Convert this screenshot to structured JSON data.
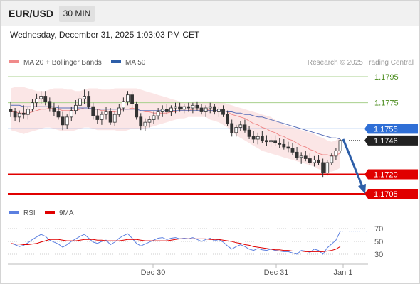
{
  "header": {
    "symbol": "EUR/USD",
    "timeframe": "30 MIN",
    "datetime": "Wednesday, December 31, 2025 1:03:03 PM CET"
  },
  "legend": {
    "ma20_label": "MA 20 + Bollinger Bands",
    "ma50_label": "MA 50",
    "ma20_color": "#f08a8a",
    "ma50_color": "#2d5ea8",
    "credit": "Research © 2025 Trading Central"
  },
  "rsi_legend": {
    "rsi_label": "RSI",
    "ma_label": "9MA",
    "rsi_color": "#5b7fe0",
    "ma_color": "#e00000"
  },
  "chart_data": [
    {
      "type": "candlestick",
      "title": "",
      "x_tick_labels": [
        "Dec 30",
        "Dec 31",
        "Jan 1"
      ],
      "ylim": [
        1.17,
        1.18
      ],
      "candles_ohlc": [
        [
          1.177,
          1.1776,
          1.1764,
          1.1768
        ],
        [
          1.1768,
          1.1771,
          1.1761,
          1.1764
        ],
        [
          1.1764,
          1.1769,
          1.176,
          1.1767
        ],
        [
          1.1767,
          1.1773,
          1.1763,
          1.1766
        ],
        [
          1.1766,
          1.1772,
          1.1762,
          1.177
        ],
        [
          1.177,
          1.1778,
          1.1768,
          1.1775
        ],
        [
          1.1775,
          1.1782,
          1.1772,
          1.1778
        ],
        [
          1.1778,
          1.1784,
          1.1774,
          1.178
        ],
        [
          1.178,
          1.1784,
          1.1773,
          1.1776
        ],
        [
          1.1776,
          1.1779,
          1.1768,
          1.1771
        ],
        [
          1.1771,
          1.1775,
          1.1765,
          1.1768
        ],
        [
          1.1768,
          1.1773,
          1.1762,
          1.1764
        ],
        [
          1.1764,
          1.1768,
          1.1754,
          1.1758
        ],
        [
          1.1758,
          1.1766,
          1.1755,
          1.1764
        ],
        [
          1.1764,
          1.1772,
          1.1761,
          1.1769
        ],
        [
          1.1769,
          1.1777,
          1.1766,
          1.1773
        ],
        [
          1.1773,
          1.1781,
          1.177,
          1.1778
        ],
        [
          1.1778,
          1.1785,
          1.1774,
          1.178
        ],
        [
          1.178,
          1.1784,
          1.177,
          1.1772
        ],
        [
          1.1772,
          1.1775,
          1.1762,
          1.1765
        ],
        [
          1.1765,
          1.177,
          1.1759,
          1.1762
        ],
        [
          1.1762,
          1.1768,
          1.1758,
          1.1766
        ],
        [
          1.1766,
          1.1772,
          1.1762,
          1.1768
        ],
        [
          1.1768,
          1.1771,
          1.1758,
          1.176
        ],
        [
          1.176,
          1.1768,
          1.1757,
          1.1766
        ],
        [
          1.1766,
          1.1774,
          1.1764,
          1.1771
        ],
        [
          1.1771,
          1.1779,
          1.1768,
          1.1776
        ],
        [
          1.1776,
          1.1784,
          1.1773,
          1.1781
        ],
        [
          1.1781,
          1.1784,
          1.1771,
          1.1774
        ],
        [
          1.1774,
          1.1776,
          1.1762,
          1.1764
        ],
        [
          1.1764,
          1.1767,
          1.1754,
          1.1757
        ],
        [
          1.1757,
          1.1763,
          1.1753,
          1.176
        ],
        [
          1.176,
          1.1765,
          1.1756,
          1.1762
        ],
        [
          1.1762,
          1.1768,
          1.1759,
          1.1765
        ],
        [
          1.1765,
          1.1771,
          1.1762,
          1.1768
        ],
        [
          1.1768,
          1.1773,
          1.1764,
          1.177
        ],
        [
          1.177,
          1.1774,
          1.1766,
          1.1768
        ],
        [
          1.1768,
          1.1773,
          1.1765,
          1.1771
        ],
        [
          1.1771,
          1.1775,
          1.1767,
          1.1772
        ],
        [
          1.1772,
          1.1775,
          1.1768,
          1.177
        ],
        [
          1.177,
          1.1774,
          1.1767,
          1.1772
        ],
        [
          1.1772,
          1.1775,
          1.1768,
          1.1771
        ],
        [
          1.1771,
          1.1775,
          1.1767,
          1.1773
        ],
        [
          1.1773,
          1.1776,
          1.1769,
          1.1771
        ],
        [
          1.1771,
          1.1774,
          1.1766,
          1.1768
        ],
        [
          1.1768,
          1.1773,
          1.1764,
          1.1771
        ],
        [
          1.1771,
          1.1775,
          1.1767,
          1.1772
        ],
        [
          1.1772,
          1.1774,
          1.1766,
          1.1768
        ],
        [
          1.1768,
          1.1772,
          1.1764,
          1.177
        ],
        [
          1.177,
          1.1773,
          1.1764,
          1.1766
        ],
        [
          1.1766,
          1.1769,
          1.1757,
          1.1759
        ],
        [
          1.1759,
          1.1762,
          1.1749,
          1.1752
        ],
        [
          1.1752,
          1.1758,
          1.1749,
          1.1756
        ],
        [
          1.1756,
          1.1761,
          1.1753,
          1.1758
        ],
        [
          1.1758,
          1.1762,
          1.1752,
          1.1754
        ],
        [
          1.1754,
          1.1757,
          1.1747,
          1.1749
        ],
        [
          1.1749,
          1.1753,
          1.1744,
          1.1747
        ],
        [
          1.1747,
          1.1752,
          1.1743,
          1.1749
        ],
        [
          1.1749,
          1.1753,
          1.1744,
          1.1746
        ],
        [
          1.1746,
          1.175,
          1.1742,
          1.1745
        ],
        [
          1.1745,
          1.1749,
          1.1741,
          1.1746
        ],
        [
          1.1746,
          1.175,
          1.1742,
          1.1744
        ],
        [
          1.1744,
          1.1748,
          1.174,
          1.1743
        ],
        [
          1.1743,
          1.1747,
          1.1739,
          1.1741
        ],
        [
          1.1741,
          1.1745,
          1.1737,
          1.174
        ],
        [
          1.174,
          1.1744,
          1.1735,
          1.1737
        ],
        [
          1.1737,
          1.1741,
          1.1731,
          1.1733
        ],
        [
          1.1733,
          1.1737,
          1.1728,
          1.1734
        ],
        [
          1.1734,
          1.1738,
          1.173,
          1.1732
        ],
        [
          1.1732,
          1.1736,
          1.1727,
          1.1729
        ],
        [
          1.1729,
          1.1734,
          1.1726,
          1.1731
        ],
        [
          1.1731,
          1.1735,
          1.1727,
          1.1729
        ],
        [
          1.1729,
          1.1732,
          1.1718,
          1.1721
        ],
        [
          1.1721,
          1.1731,
          1.1719,
          1.1729
        ],
        [
          1.1729,
          1.1736,
          1.1727,
          1.1734
        ],
        [
          1.1734,
          1.174,
          1.1731,
          1.1738
        ],
        [
          1.1738,
          1.1747,
          1.1736,
          1.1746
        ]
      ],
      "series": [
        {
          "name": "MA 20",
          "values": [
            1.1768,
            1.1768,
            1.1767,
            1.1767,
            1.1767,
            1.1768,
            1.1769,
            1.177,
            1.177,
            1.1771,
            1.177,
            1.177,
            1.1769,
            1.1769,
            1.1769,
            1.1769,
            1.177,
            1.1771,
            1.1771,
            1.177,
            1.177,
            1.1769,
            1.1769,
            1.1768,
            1.1768,
            1.1769,
            1.177,
            1.177,
            1.1771,
            1.177,
            1.1769,
            1.1768,
            1.1768,
            1.1767,
            1.1767,
            1.1767,
            1.1767,
            1.1768,
            1.1768,
            1.1769,
            1.1769,
            1.1769,
            1.177,
            1.177,
            1.177,
            1.177,
            1.1769,
            1.1769,
            1.1769,
            1.1769,
            1.1768,
            1.1766,
            1.1765,
            1.1764,
            1.1763,
            1.1761,
            1.1759,
            1.1758,
            1.1756,
            1.1755,
            1.1753,
            1.1752,
            1.175,
            1.1749,
            1.1747,
            1.1746,
            1.1744,
            1.1742,
            1.1741,
            1.1739,
            1.1738,
            1.1736,
            1.1735,
            1.1735,
            1.1734,
            1.1735,
            1.1736
          ]
        },
        {
          "name": "MA 50",
          "values": [
            1.1773,
            1.1773,
            1.1773,
            1.1772,
            1.1772,
            1.1772,
            1.1772,
            1.1772,
            1.1772,
            1.1772,
            1.1772,
            1.1771,
            1.1771,
            1.1771,
            1.1771,
            1.1771,
            1.1771,
            1.1771,
            1.1771,
            1.177,
            1.177,
            1.177,
            1.177,
            1.177,
            1.177,
            1.177,
            1.177,
            1.177,
            1.177,
            1.177,
            1.1769,
            1.1769,
            1.1769,
            1.1769,
            1.1769,
            1.1769,
            1.1769,
            1.1769,
            1.1769,
            1.1769,
            1.1769,
            1.1769,
            1.1769,
            1.1769,
            1.1769,
            1.1769,
            1.1769,
            1.1769,
            1.1769,
            1.1769,
            1.1768,
            1.1768,
            1.1767,
            1.1767,
            1.1766,
            1.1766,
            1.1765,
            1.1764,
            1.1764,
            1.1763,
            1.1762,
            1.1761,
            1.176,
            1.1759,
            1.1758,
            1.1757,
            1.1756,
            1.1755,
            1.1754,
            1.1753,
            1.1752,
            1.1751,
            1.175,
            1.1749,
            1.1748,
            1.1748,
            1.1747
          ]
        },
        {
          "name": "Bollinger upper",
          "values": [
            1.1786,
            1.1787,
            1.1787,
            1.1787,
            1.1786,
            1.1785,
            1.1784,
            1.1784,
            1.1784,
            1.1785,
            1.1786,
            1.1786,
            1.1786,
            1.1785,
            1.1785,
            1.1784,
            1.1784,
            1.1785,
            1.1786,
            1.1786,
            1.1786,
            1.1785,
            1.1785,
            1.1785,
            1.1786,
            1.1786,
            1.1786,
            1.1786,
            1.1786,
            1.1786,
            1.1785,
            1.1784,
            1.1783,
            1.1782,
            1.1781,
            1.178,
            1.1779,
            1.1778,
            1.1777,
            1.1776,
            1.1775,
            1.1775,
            1.1776,
            1.1776,
            1.1776,
            1.1776,
            1.1776,
            1.1776,
            1.1776,
            1.1775,
            1.1774,
            1.1773,
            1.1772,
            1.1771,
            1.177,
            1.1769,
            1.1768,
            1.1767,
            1.1766,
            1.1765,
            1.1764,
            1.1762,
            1.176,
            1.1758,
            1.1757,
            1.1756,
            1.1755,
            1.1754,
            1.1753,
            1.1752,
            1.1751,
            1.1749,
            1.1748,
            1.1746,
            1.1745,
            1.1746,
            1.1748
          ]
        },
        {
          "name": "Bollinger lower",
          "values": [
            1.1754,
            1.1753,
            1.1752,
            1.1751,
            1.1752,
            1.1753,
            1.1754,
            1.1755,
            1.1756,
            1.1756,
            1.1755,
            1.1754,
            1.1753,
            1.1753,
            1.1753,
            1.1754,
            1.1755,
            1.1756,
            1.1756,
            1.1755,
            1.1754,
            1.1754,
            1.1754,
            1.1754,
            1.1754,
            1.1753,
            1.1753,
            1.1754,
            1.1755,
            1.1755,
            1.1755,
            1.1755,
            1.1756,
            1.1757,
            1.1758,
            1.1759,
            1.176,
            1.1761,
            1.1762,
            1.1763,
            1.1763,
            1.1764,
            1.1764,
            1.1764,
            1.1764,
            1.1764,
            1.1762,
            1.1761,
            1.176,
            1.1758,
            1.1756,
            1.1753,
            1.175,
            1.1748,
            1.1746,
            1.1744,
            1.1742,
            1.174,
            1.1738,
            1.1737,
            1.1736,
            1.1735,
            1.1734,
            1.1733,
            1.1732,
            1.1731,
            1.173,
            1.1729,
            1.1728,
            1.1727,
            1.1726,
            1.1724,
            1.1723,
            1.1722,
            1.1722,
            1.1723,
            1.1725
          ]
        }
      ],
      "levels": [
        {
          "label": "1.1795",
          "value": 1.1795,
          "style": "resistance"
        },
        {
          "label": "1.1775",
          "value": 1.1775,
          "style": "resistance"
        },
        {
          "label": "1.1755",
          "value": 1.1755,
          "style": "pivot"
        },
        {
          "label": "1.1746",
          "value": 1.1746,
          "style": "last"
        },
        {
          "label": "1.1720",
          "value": 1.172,
          "style": "target"
        },
        {
          "label": "1.1705",
          "value": 1.1705,
          "style": "target"
        }
      ],
      "projection": {
        "from_index": 76,
        "from_value": 1.1747,
        "to_value": 1.1705,
        "color": "#2d5ea8"
      }
    },
    {
      "type": "line",
      "title": "",
      "y_tick_labels": [
        "70",
        "50",
        "30"
      ],
      "ylim": [
        20,
        80
      ],
      "series": [
        {
          "name": "RSI",
          "values": [
            47,
            45,
            42,
            44,
            48,
            53,
            57,
            61,
            58,
            52,
            49,
            46,
            41,
            45,
            50,
            54,
            58,
            61,
            55,
            49,
            47,
            50,
            52,
            45,
            49,
            55,
            59,
            62,
            55,
            47,
            43,
            46,
            49,
            52,
            55,
            56,
            53,
            55,
            56,
            54,
            55,
            54,
            56,
            53,
            50,
            53,
            55,
            51,
            53,
            49,
            43,
            38,
            42,
            45,
            42,
            38,
            36,
            39,
            37,
            36,
            38,
            36,
            35,
            34,
            34,
            32,
            30,
            36,
            35,
            33,
            38,
            36,
            30,
            40,
            46,
            52,
            66
          ]
        },
        {
          "name": "9MA",
          "values": [
            47,
            46,
            46,
            45,
            45,
            46,
            47,
            49,
            51,
            53,
            53,
            53,
            52,
            51,
            51,
            51,
            52,
            53,
            53,
            53,
            52,
            52,
            51,
            51,
            51,
            51,
            52,
            53,
            53,
            53,
            52,
            51,
            51,
            51,
            51,
            51,
            51,
            52,
            53,
            54,
            54,
            54,
            54,
            54,
            54,
            54,
            53,
            53,
            53,
            52,
            51,
            50,
            48,
            47,
            45,
            44,
            42,
            41,
            40,
            39,
            38,
            37,
            37,
            36,
            36,
            35,
            35,
            35,
            34,
            34,
            34,
            34,
            34,
            35,
            36,
            38,
            42
          ]
        }
      ]
    }
  ]
}
